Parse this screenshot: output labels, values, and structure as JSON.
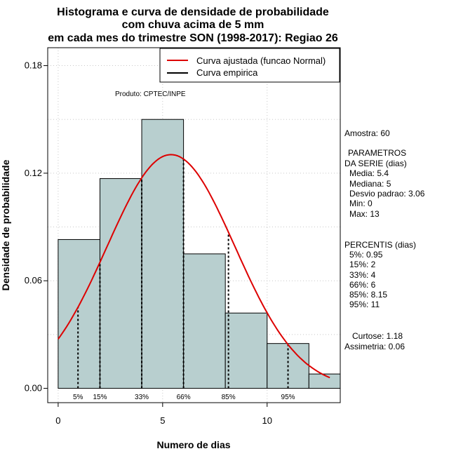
{
  "chart_data": {
    "type": "bar",
    "title": [
      "Histograma e curva de densidade de probabilidade",
      "com chuva acima de 5 mm",
      "em cada mes do trimestre SON (1998-2017): Regiao 26"
    ],
    "xlabel": "Numero de dias",
    "ylabel": "Densidade de probabilidade",
    "xlim": [
      -0.5,
      13.5
    ],
    "ylim": [
      -0.008,
      0.19
    ],
    "x_ticks": [
      0,
      5,
      10
    ],
    "y_ticks": [
      0.0,
      0.06,
      0.12,
      0.18
    ],
    "y_tick_labels": [
      "0.00",
      "0.06",
      "0.12",
      "0.18"
    ],
    "grid": true,
    "bins": [
      {
        "start": 0,
        "end": 2,
        "density": 0.083
      },
      {
        "start": 2,
        "end": 4,
        "density": 0.117
      },
      {
        "start": 4,
        "end": 6,
        "density": 0.15
      },
      {
        "start": 6,
        "end": 8,
        "density": 0.075
      },
      {
        "start": 8,
        "end": 10,
        "density": 0.042
      },
      {
        "start": 10,
        "end": 12,
        "density": 0.025
      },
      {
        "start": 12,
        "end": 14,
        "density": 0.008
      }
    ],
    "bar_color": "#b8cfcf",
    "normal_fit": {
      "mean": 5.4,
      "sd": 3.06,
      "x_from": 0,
      "x_to": 13,
      "color": "#dd0000"
    },
    "percentile_lines": [
      {
        "label": "5%",
        "x": 0.95
      },
      {
        "label": "15%",
        "x": 2
      },
      {
        "label": "33%",
        "x": 4
      },
      {
        "label": "66%",
        "x": 6
      },
      {
        "label": "85%",
        "x": 8.15
      },
      {
        "label": "95%",
        "x": 11
      }
    ],
    "legend": {
      "position": "top-right",
      "entries": [
        {
          "label": "Curva ajustada (funcao Normal)",
          "color": "#dd0000"
        },
        {
          "label": "Curva empirica",
          "color": "#000000"
        }
      ]
    },
    "annotation": "Produto: CPTEC/INPE"
  },
  "stats": {
    "amostra": "Amostra: 60",
    "params_title_1": "PARAMETROS",
    "params_title_2": "DA SERIE (dias)",
    "media": "Media: 5.4",
    "mediana": "Mediana: 5",
    "desvio": "Desvio padrao: 3.06",
    "min": "Min: 0",
    "max": "Max: 13",
    "percentis_title": "PERCENTIS (dias)",
    "p5": "5%: 0.95",
    "p15": "15%: 2",
    "p33": "33%: 4",
    "p66": "66%: 6",
    "p85": "85%: 8.15",
    "p95": "95%: 11",
    "curtose": "Curtose: 1.18",
    "assimetria": "Assimetria: 0.06"
  }
}
